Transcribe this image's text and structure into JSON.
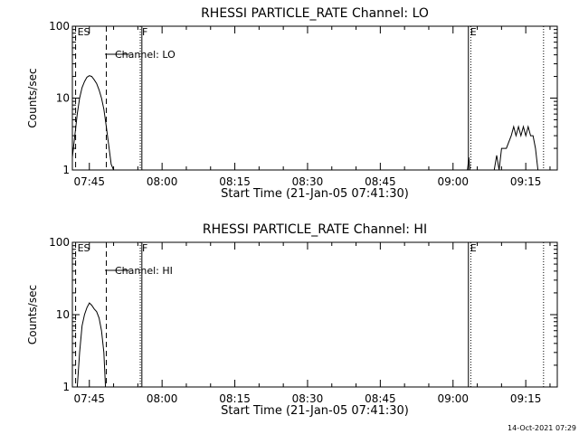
{
  "footer": {
    "timestamp": "14-Oct-2021 07:29"
  },
  "chart_data": [
    {
      "type": "line",
      "title": "RHESSI PARTICLE_RATE Channel: LO",
      "xlabel": "Start Time (21-Jan-05 07:41:30)",
      "ylabel": "Counts/sec",
      "y_scale": "log",
      "ylim": [
        1,
        100
      ],
      "xlim": [
        "07:41:30",
        "09:21:30"
      ],
      "x_ticks": [
        "07:45",
        "08:00",
        "08:15",
        "08:30",
        "08:45",
        "09:00",
        "09:15"
      ],
      "y_ticks": [
        "1",
        "10",
        "100"
      ],
      "legend": {
        "placement": "top-left",
        "entries": [
          "Channel: LO"
        ]
      },
      "markers": [
        {
          "label": "ES",
          "time": "07:42:10",
          "style": "dashed"
        },
        {
          "label": "",
          "time": "07:48:30",
          "style": "dashed"
        },
        {
          "label": "F",
          "time": "07:55:30",
          "style": "dotted"
        },
        {
          "label": "",
          "time": "07:55:50",
          "style": "solid"
        },
        {
          "label": "E",
          "time": "09:03:10",
          "style": "solid"
        },
        {
          "label": "",
          "time": "09:03:40",
          "style": "dotted"
        },
        {
          "label": "",
          "time": "09:18:40",
          "style": "dotted"
        }
      ],
      "series": [
        {
          "name": "Channel: LO",
          "segments": [
            [
              [
                "07:41:30",
                1.5
              ],
              [
                "07:42:00",
                3
              ],
              [
                "07:42:30",
                6
              ],
              [
                "07:43:00",
                10
              ],
              [
                "07:43:30",
                14
              ],
              [
                "07:44:00",
                17
              ],
              [
                "07:44:30",
                19.5
              ],
              [
                "07:45:00",
                20.5
              ],
              [
                "07:45:30",
                20
              ],
              [
                "07:46:00",
                18
              ],
              [
                "07:46:30",
                16
              ],
              [
                "07:47:00",
                13
              ],
              [
                "07:47:30",
                10
              ],
              [
                "07:48:00",
                7
              ],
              [
                "07:48:30",
                4
              ],
              [
                "07:49:00",
                2.2
              ],
              [
                "07:49:30",
                1.2
              ],
              [
                "07:50:00",
                1
              ]
            ],
            [
              [
                "09:03:00",
                1
              ],
              [
                "09:03:15",
                1.5
              ],
              [
                "09:03:30",
                1
              ]
            ],
            [
              [
                "09:08:30",
                1
              ],
              [
                "09:09:00",
                1.6
              ],
              [
                "09:09:30",
                1
              ],
              [
                "09:10:00",
                2
              ],
              [
                "09:11:00",
                2
              ],
              [
                "09:12:00",
                3
              ],
              [
                "09:12:30",
                4
              ],
              [
                "09:13:00",
                3
              ],
              [
                "09:13:30",
                4
              ],
              [
                "09:14:00",
                3
              ],
              [
                "09:14:30",
                4
              ],
              [
                "09:15:00",
                3
              ],
              [
                "09:15:30",
                4
              ],
              [
                "09:16:00",
                3
              ],
              [
                "09:16:30",
                3
              ],
              [
                "09:17:00",
                2
              ],
              [
                "09:17:30",
                1
              ]
            ]
          ]
        }
      ]
    },
    {
      "type": "line",
      "title": "RHESSI PARTICLE_RATE Channel: HI",
      "xlabel": "Start Time (21-Jan-05 07:41:30)",
      "ylabel": "Counts/sec",
      "y_scale": "log",
      "ylim": [
        1,
        100
      ],
      "xlim": [
        "07:41:30",
        "09:21:30"
      ],
      "x_ticks": [
        "07:45",
        "08:00",
        "08:15",
        "08:30",
        "08:45",
        "09:00",
        "09:15"
      ],
      "y_ticks": [
        "1",
        "10",
        "100"
      ],
      "legend": {
        "placement": "top-left",
        "entries": [
          "Channel: HI"
        ]
      },
      "markers": [
        {
          "label": "ES",
          "time": "07:42:10",
          "style": "dashed"
        },
        {
          "label": "",
          "time": "07:48:30",
          "style": "dashed"
        },
        {
          "label": "F",
          "time": "07:55:30",
          "style": "dotted"
        },
        {
          "label": "",
          "time": "07:55:50",
          "style": "solid"
        },
        {
          "label": "E",
          "time": "09:03:10",
          "style": "solid"
        },
        {
          "label": "",
          "time": "09:03:40",
          "style": "dotted"
        },
        {
          "label": "",
          "time": "09:18:40",
          "style": "dotted"
        }
      ],
      "series": [
        {
          "name": "Channel: HI",
          "segments": [
            [
              [
                "07:42:30",
                1
              ],
              [
                "07:43:00",
                3
              ],
              [
                "07:43:30",
                7
              ],
              [
                "07:44:00",
                10
              ],
              [
                "07:44:30",
                12.5
              ],
              [
                "07:45:00",
                14.5
              ],
              [
                "07:45:30",
                13.5
              ],
              [
                "07:46:00",
                12
              ],
              [
                "07:46:30",
                11
              ],
              [
                "07:47:00",
                9
              ],
              [
                "07:47:30",
                6
              ],
              [
                "07:48:00",
                3
              ],
              [
                "07:48:20",
                1
              ]
            ]
          ]
        }
      ]
    }
  ]
}
